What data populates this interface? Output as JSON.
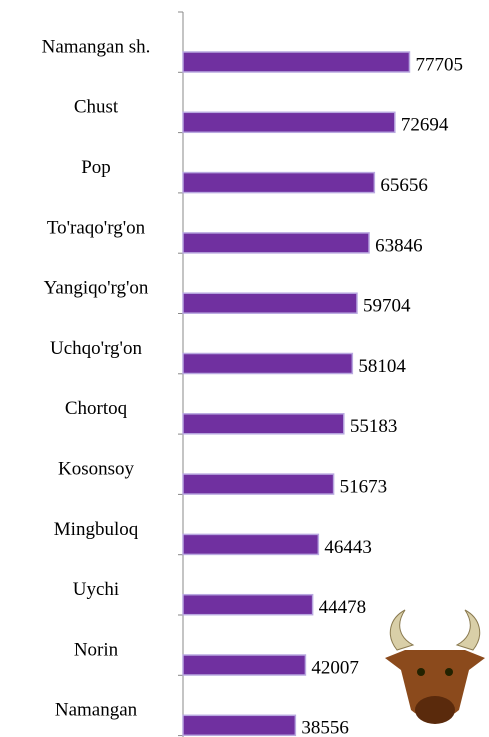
{
  "chart_data": {
    "type": "barh",
    "categories": [
      "Namangan sh.",
      "Chust",
      "Pop",
      "To'raqo'rg'on",
      "Yangiqo'rg'on",
      "Uchqo'rg'on",
      "Chortoq",
      "Kosonsoy",
      "Mingbuloq",
      "Uychi",
      "Norin",
      "Namangan"
    ],
    "values": [
      77705,
      72694,
      65656,
      63846,
      59704,
      58104,
      55183,
      51673,
      46443,
      44478,
      42007,
      38556
    ],
    "color": "#7030a0",
    "xlim": [
      0,
      105000
    ]
  }
}
